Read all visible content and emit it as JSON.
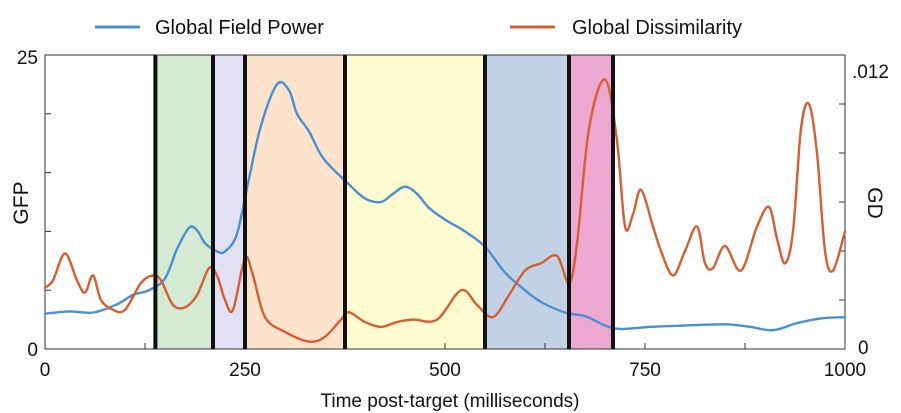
{
  "chart_data": {
    "type": "line",
    "xlabel": "Time post-target (milliseconds)",
    "ylabel_left": "GFP",
    "ylabel_right": "GD",
    "xlim": [
      0,
      1000
    ],
    "ylim_left": [
      0,
      25
    ],
    "ylim_right": [
      0,
      0.012
    ],
    "x_ticks": [
      0,
      250,
      500,
      750,
      1000
    ],
    "y_left_ticks": [
      0,
      25
    ],
    "y_right_tick_labels": [
      ".012",
      "0"
    ],
    "grid": false,
    "legend_position": "top",
    "segment_boundaries": [
      138,
      210,
      250,
      375,
      550,
      655,
      710
    ],
    "segments": [
      {
        "start": 138,
        "end": 210,
        "color": "#d5ead2"
      },
      {
        "start": 210,
        "end": 250,
        "color": "#e2e0f2"
      },
      {
        "start": 250,
        "end": 375,
        "color": "#fde3cc"
      },
      {
        "start": 375,
        "end": 550,
        "color": "#fdfbcf"
      },
      {
        "start": 550,
        "end": 655,
        "color": "#c3d1e4"
      },
      {
        "start": 655,
        "end": 710,
        "color": "#eda8d2"
      }
    ],
    "series": [
      {
        "name": "Global Field Power",
        "color": "#4a8fd0",
        "axis": "left",
        "x": [
          0,
          30,
          60,
          90,
          110,
          130,
          150,
          165,
          180,
          190,
          200,
          215,
          225,
          240,
          255,
          270,
          290,
          305,
          315,
          330,
          345,
          360,
          380,
          400,
          420,
          435,
          450,
          465,
          480,
          500,
          525,
          550,
          575,
          600,
          620,
          650,
          675,
          700,
          720,
          760,
          800,
          850,
          880,
          910,
          940,
          970,
          1000
        ],
        "y": [
          3.0,
          3.2,
          3.1,
          3.8,
          4.6,
          5.0,
          6.0,
          8.5,
          10.3,
          10.1,
          9.0,
          8.3,
          8.3,
          9.8,
          14.5,
          19.0,
          22.5,
          22.0,
          20.0,
          18.5,
          16.5,
          15.3,
          14.0,
          12.8,
          12.5,
          13.2,
          13.8,
          13.2,
          12.0,
          11.0,
          10.0,
          8.7,
          6.5,
          5.0,
          4.0,
          3.1,
          2.8,
          2.0,
          1.7,
          1.9,
          2.0,
          2.1,
          1.9,
          1.6,
          2.2,
          2.6,
          2.7
        ]
      },
      {
        "name": "Global Dissimilarity",
        "color": "#d35f33",
        "axis": "right",
        "x": [
          0,
          10,
          25,
          40,
          50,
          60,
          70,
          85,
          100,
          120,
          135,
          145,
          160,
          175,
          190,
          205,
          215,
          225,
          235,
          250,
          260,
          275,
          300,
          330,
          350,
          370,
          380,
          400,
          420,
          440,
          460,
          490,
          520,
          540,
          560,
          580,
          600,
          620,
          640,
          655,
          665,
          680,
          700,
          715,
          725,
          735,
          745,
          760,
          770,
          785,
          800,
          815,
          825,
          835,
          850,
          870,
          890,
          905,
          915,
          925,
          935,
          945,
          955,
          965,
          975,
          985,
          1000
        ],
        "y": [
          0.0025,
          0.0028,
          0.0039,
          0.0028,
          0.0023,
          0.003,
          0.002,
          0.0016,
          0.0016,
          0.0027,
          0.003,
          0.0028,
          0.0018,
          0.0017,
          0.0022,
          0.0033,
          0.003,
          0.002,
          0.0016,
          0.0037,
          0.003,
          0.0013,
          0.0007,
          0.0003,
          0.0005,
          0.0012,
          0.0015,
          0.0011,
          0.0009,
          0.0011,
          0.0012,
          0.0012,
          0.0024,
          0.0018,
          0.0013,
          0.0022,
          0.0032,
          0.0035,
          0.0038,
          0.0027,
          0.0043,
          0.009,
          0.011,
          0.0085,
          0.005,
          0.0055,
          0.0065,
          0.005,
          0.004,
          0.003,
          0.004,
          0.005,
          0.0035,
          0.0033,
          0.0042,
          0.0032,
          0.005,
          0.0058,
          0.0045,
          0.0035,
          0.0048,
          0.009,
          0.01,
          0.008,
          0.004,
          0.0032,
          0.0048
        ]
      }
    ]
  }
}
